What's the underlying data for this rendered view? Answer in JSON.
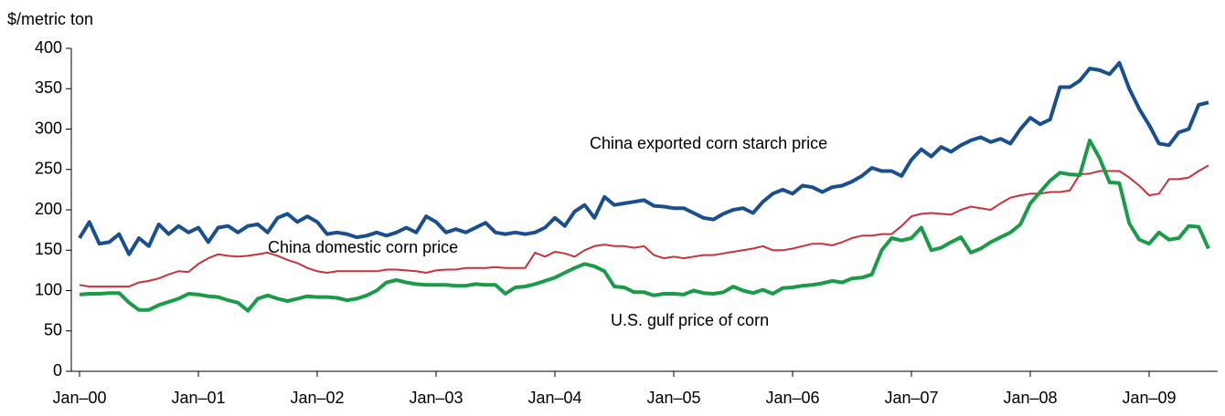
{
  "chart_data": {
    "type": "line",
    "ylabel": "$/metric ton",
    "annotations": [
      "China exported corn starch price",
      "China domestic corn price",
      "U.S. gulf price of corn"
    ],
    "categories": [
      "Jan–00",
      null,
      null,
      null,
      null,
      null,
      null,
      null,
      null,
      null,
      null,
      null,
      "Jan–01",
      null,
      null,
      null,
      null,
      null,
      null,
      null,
      null,
      null,
      null,
      null,
      "Jan–02",
      null,
      null,
      null,
      null,
      null,
      null,
      null,
      null,
      null,
      null,
      null,
      "Jan–03",
      null,
      null,
      null,
      null,
      null,
      null,
      null,
      null,
      null,
      null,
      null,
      "Jan–04",
      null,
      null,
      null,
      null,
      null,
      null,
      null,
      null,
      null,
      null,
      null,
      "Jan–05",
      null,
      null,
      null,
      null,
      null,
      null,
      null,
      null,
      null,
      null,
      null,
      "Jan–06",
      null,
      null,
      null,
      null,
      null,
      null,
      null,
      null,
      null,
      null,
      null,
      "Jan–07",
      null,
      null,
      null,
      null,
      null,
      null,
      null,
      null,
      null,
      null,
      null,
      "Jan–08",
      null,
      null,
      null,
      null,
      null,
      null,
      null,
      null,
      null,
      null,
      null,
      "Jan–09",
      null,
      null,
      null,
      null,
      null,
      null
    ],
    "ylim": [
      0,
      400
    ],
    "yticks": [
      0,
      50,
      100,
      150,
      200,
      250,
      300,
      350,
      400
    ],
    "series": [
      {
        "name": "China exported corn starch price",
        "color": "#1a4f8f",
        "width": 4,
        "values": [
          165,
          185,
          158,
          160,
          170,
          145,
          165,
          155,
          182,
          170,
          180,
          172,
          178,
          160,
          178,
          180,
          172,
          180,
          182,
          172,
          190,
          195,
          185,
          192,
          185,
          170,
          172,
          170,
          166,
          168,
          172,
          168,
          172,
          178,
          172,
          192,
          185,
          172,
          176,
          172,
          178,
          184,
          172,
          170,
          172,
          170,
          172,
          178,
          190,
          180,
          198,
          206,
          190,
          216,
          206,
          208,
          210,
          212,
          205,
          204,
          202,
          202,
          196,
          190,
          188,
          195,
          200,
          202,
          196,
          210,
          220,
          225,
          220,
          230,
          228,
          222,
          228,
          230,
          235,
          242,
          252,
          248,
          248,
          242,
          262,
          275,
          266,
          278,
          272,
          280,
          286,
          290,
          284,
          288,
          282,
          300,
          314,
          306,
          312,
          352,
          352,
          360,
          375,
          373,
          368,
          382,
          350,
          325,
          305,
          282,
          280,
          296,
          300,
          330,
          333
        ]
      },
      {
        "name": "China domestic corn price",
        "color": "#c8323c",
        "width": 2,
        "values": [
          107,
          105,
          105,
          105,
          105,
          105,
          110,
          112,
          115,
          120,
          124,
          123,
          133,
          140,
          145,
          143,
          142,
          143,
          145,
          147,
          143,
          138,
          134,
          128,
          124,
          122,
          124,
          124,
          124,
          124,
          124,
          126,
          126,
          125,
          124,
          122,
          125,
          126,
          126,
          128,
          128,
          128,
          129,
          128,
          128,
          128,
          147,
          142,
          148,
          146,
          142,
          150,
          155,
          157,
          155,
          155,
          153,
          155,
          144,
          140,
          142,
          140,
          142,
          144,
          144,
          146,
          148,
          150,
          152,
          155,
          150,
          150,
          152,
          155,
          158,
          158,
          156,
          160,
          165,
          168,
          168,
          170,
          170,
          180,
          192,
          195,
          196,
          195,
          194,
          200,
          204,
          202,
          200,
          208,
          215,
          218,
          220,
          220,
          222,
          222,
          224,
          244,
          245,
          248,
          248,
          248,
          240,
          230,
          218,
          220,
          238,
          238,
          240,
          248,
          255
        ]
      },
      {
        "name": "U.S. gulf price of corn",
        "color": "#1a9b48",
        "width": 4,
        "values": [
          95,
          96,
          96,
          97,
          97,
          85,
          76,
          76,
          82,
          86,
          90,
          96,
          95,
          93,
          92,
          88,
          85,
          75,
          90,
          94,
          90,
          87,
          90,
          93,
          92,
          92,
          91,
          88,
          90,
          94,
          100,
          110,
          113,
          110,
          108,
          107,
          107,
          107,
          106,
          106,
          108,
          107,
          107,
          96,
          104,
          105,
          108,
          112,
          116,
          122,
          128,
          133,
          130,
          124,
          105,
          104,
          98,
          98,
          94,
          96,
          96,
          95,
          100,
          97,
          96,
          98,
          105,
          100,
          97,
          101,
          96,
          103,
          104,
          106,
          107,
          109,
          112,
          110,
          115,
          116,
          120,
          150,
          165,
          162,
          165,
          178,
          150,
          153,
          160,
          166,
          147,
          152,
          160,
          166,
          172,
          182,
          208,
          222,
          236,
          246,
          244,
          243,
          286,
          264,
          234,
          233,
          183,
          163,
          158,
          172,
          163,
          165,
          180,
          179,
          152
        ]
      }
    ]
  }
}
